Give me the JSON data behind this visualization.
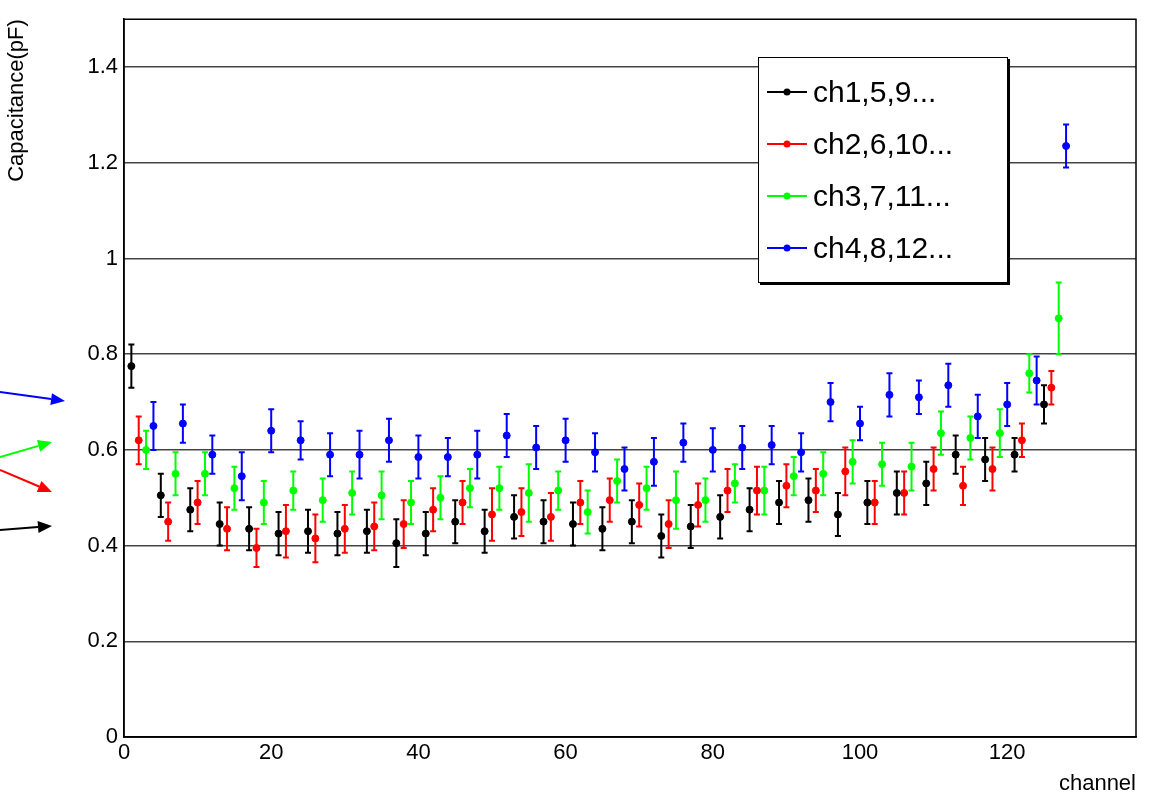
{
  "chart_data": {
    "type": "scatter",
    "xlabel": "channel",
    "ylabel": "Capacitance(pF)",
    "xlim": [
      0,
      137.5
    ],
    "xticks": [
      0,
      20,
      40,
      60,
      80,
      100,
      120
    ],
    "ylim": [
      0,
      1.5
    ],
    "yticks": [
      0,
      0.2,
      0.4,
      0.6,
      0.8,
      1,
      1.2,
      1.4
    ],
    "grid": "y",
    "legend": "top right",
    "marker": "circle",
    "series": [
      {
        "name": "ch1,5,9...",
        "color": "#000000",
        "x": [
          1,
          5,
          9,
          13,
          17,
          21,
          25,
          29,
          33,
          37,
          41,
          45,
          49,
          53,
          57,
          61,
          65,
          69,
          73,
          77,
          81,
          85,
          89,
          93,
          97,
          101,
          105,
          109,
          113,
          117,
          121,
          125
        ],
        "values": [
          0.775,
          0.505,
          0.475,
          0.445,
          0.435,
          0.425,
          0.43,
          0.425,
          0.43,
          0.405,
          0.425,
          0.45,
          0.43,
          0.46,
          0.45,
          0.445,
          0.435,
          0.45,
          0.42,
          0.44,
          0.46,
          0.475,
          0.49,
          0.495,
          0.465,
          0.49,
          0.51,
          0.53,
          0.59,
          0.58,
          0.59,
          0.695
        ],
        "errors": [
          0.045,
          0.045,
          0.045,
          0.045,
          0.045,
          0.045,
          0.045,
          0.045,
          0.045,
          0.05,
          0.045,
          0.045,
          0.045,
          0.045,
          0.045,
          0.045,
          0.045,
          0.045,
          0.045,
          0.045,
          0.045,
          0.045,
          0.045,
          0.045,
          0.045,
          0.045,
          0.045,
          0.045,
          0.04,
          0.045,
          0.035,
          0.04
        ]
      },
      {
        "name": "ch2,6,10...",
        "color": "#ff0000",
        "x": [
          2,
          6,
          10,
          14,
          18,
          22,
          26,
          30,
          34,
          38,
          42,
          46,
          50,
          54,
          58,
          62,
          66,
          70,
          74,
          78,
          82,
          86,
          90,
          94,
          98,
          102,
          106,
          110,
          114,
          118,
          122,
          126
        ],
        "values": [
          0.62,
          0.45,
          0.49,
          0.435,
          0.395,
          0.43,
          0.415,
          0.435,
          0.44,
          0.445,
          0.475,
          0.49,
          0.465,
          0.47,
          0.46,
          0.49,
          0.495,
          0.485,
          0.445,
          0.485,
          0.515,
          0.515,
          0.525,
          0.515,
          0.555,
          0.49,
          0.51,
          0.56,
          0.525,
          0.56,
          0.62,
          0.73
        ],
        "errors": [
          0.05,
          0.04,
          0.045,
          0.045,
          0.04,
          0.055,
          0.05,
          0.05,
          0.05,
          0.05,
          0.045,
          0.045,
          0.055,
          0.05,
          0.05,
          0.045,
          0.045,
          0.045,
          0.05,
          0.045,
          0.045,
          0.05,
          0.045,
          0.045,
          0.05,
          0.045,
          0.045,
          0.045,
          0.04,
          0.045,
          0.035,
          0.035
        ]
      },
      {
        "name": "ch3,7,11...",
        "color": "#00ff00",
        "x": [
          3,
          7,
          11,
          15,
          19,
          23,
          27,
          31,
          35,
          39,
          43,
          47,
          51,
          55,
          59,
          63,
          67,
          71,
          75,
          79,
          83,
          87,
          91,
          95,
          99,
          103,
          107,
          111,
          115,
          119,
          123,
          127
        ],
        "values": [
          0.6,
          0.55,
          0.55,
          0.52,
          0.49,
          0.515,
          0.495,
          0.51,
          0.505,
          0.49,
          0.5,
          0.52,
          0.52,
          0.51,
          0.515,
          0.47,
          0.535,
          0.52,
          0.495,
          0.495,
          0.53,
          0.515,
          0.545,
          0.55,
          0.575,
          0.57,
          0.565,
          0.635,
          0.625,
          0.635,
          0.76,
          0.875
        ],
        "errors": [
          0.04,
          0.045,
          0.045,
          0.045,
          0.045,
          0.04,
          0.045,
          0.045,
          0.05,
          0.045,
          0.045,
          0.04,
          0.045,
          0.06,
          0.04,
          0.045,
          0.045,
          0.045,
          0.06,
          0.045,
          0.04,
          0.05,
          0.04,
          0.045,
          0.045,
          0.045,
          0.05,
          0.045,
          0.045,
          0.05,
          0.04,
          0.075
        ]
      },
      {
        "name": "ch4,8,12...",
        "color": "#0000ff",
        "x": [
          4,
          8,
          12,
          16,
          20,
          24,
          28,
          32,
          36,
          40,
          44,
          48,
          52,
          56,
          60,
          64,
          68,
          72,
          76,
          80,
          84,
          88,
          92,
          96,
          100,
          104,
          108,
          112,
          116,
          120,
          124,
          128
        ],
        "values": [
          0.65,
          0.655,
          0.59,
          0.545,
          0.64,
          0.62,
          0.59,
          0.59,
          0.62,
          0.585,
          0.585,
          0.59,
          0.63,
          0.605,
          0.62,
          0.595,
          0.56,
          0.575,
          0.615,
          0.6,
          0.605,
          0.61,
          0.595,
          0.7,
          0.655,
          0.715,
          0.71,
          0.735,
          0.67,
          0.695,
          0.745,
          1.235
        ],
        "errors": [
          0.05,
          0.04,
          0.04,
          0.05,
          0.045,
          0.04,
          0.045,
          0.05,
          0.045,
          0.045,
          0.04,
          0.05,
          0.045,
          0.045,
          0.045,
          0.04,
          0.045,
          0.05,
          0.04,
          0.045,
          0.045,
          0.04,
          0.04,
          0.04,
          0.035,
          0.045,
          0.035,
          0.045,
          0.045,
          0.045,
          0.05,
          0.045
        ]
      }
    ]
  }
}
